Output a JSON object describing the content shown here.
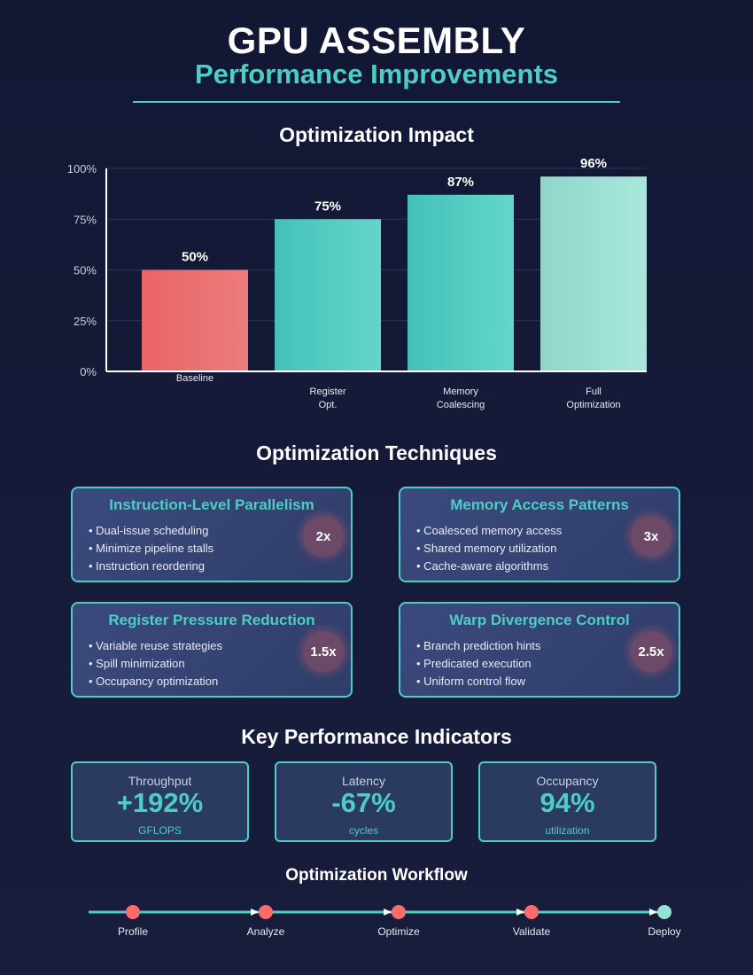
{
  "header": {
    "title": "GPU ASSEMBLY",
    "subtitle": "Performance Improvements"
  },
  "chart_data": {
    "type": "bar",
    "title": "Optimization Impact",
    "categories": [
      [
        "Baseline"
      ],
      [
        "Register",
        "Opt."
      ],
      [
        "Memory",
        "Coalescing"
      ],
      [
        "Full",
        "Optimization"
      ]
    ],
    "values": [
      50,
      75,
      87,
      96
    ],
    "value_labels": [
      "50%",
      "75%",
      "87%",
      "96%"
    ],
    "ylim": [
      0,
      100
    ],
    "yticks": [
      0,
      25,
      50,
      75,
      100
    ],
    "ytick_labels": [
      "0%",
      "25%",
      "50%",
      "75%",
      "100%"
    ],
    "grid": true,
    "colors": [
      "#ef6b6b",
      "#4ecdc4",
      "#4ecdc4",
      "#95e1d3"
    ]
  },
  "techniques": {
    "title": "Optimization Techniques",
    "cards": [
      {
        "title": "Instruction-Level Parallelism",
        "items": [
          "Dual-issue scheduling",
          "Minimize pipeline stalls",
          "Instruction reordering"
        ],
        "badge": "2x"
      },
      {
        "title": "Memory Access Patterns",
        "items": [
          "Coalesced memory access",
          "Shared memory utilization",
          "Cache-aware algorithms"
        ],
        "badge": "3x"
      },
      {
        "title": "Register Pressure Reduction",
        "items": [
          "Variable reuse strategies",
          "Spill minimization",
          "Occupancy optimization"
        ],
        "badge": "1.5x"
      },
      {
        "title": "Warp Divergence Control",
        "items": [
          "Branch prediction hints",
          "Predicated execution",
          "Uniform control flow"
        ],
        "badge": "2.5x"
      }
    ]
  },
  "kpis": {
    "title": "Key Performance Indicators",
    "items": [
      {
        "label": "Throughput",
        "value": "+192%",
        "unit": "GFLOPS"
      },
      {
        "label": "Latency",
        "value": "-67%",
        "unit": "cycles"
      },
      {
        "label": "Occupancy",
        "value": "94%",
        "unit": "utilization"
      }
    ]
  },
  "workflow": {
    "title": "Optimization Workflow",
    "steps": [
      "Profile",
      "Analyze",
      "Optimize",
      "Validate",
      "Deploy"
    ],
    "colors": [
      "#ff6b6b",
      "#ff6b6b",
      "#ff6b6b",
      "#ff6b6b",
      "#95e1d3"
    ],
    "line_color": "#4ecdc4"
  }
}
